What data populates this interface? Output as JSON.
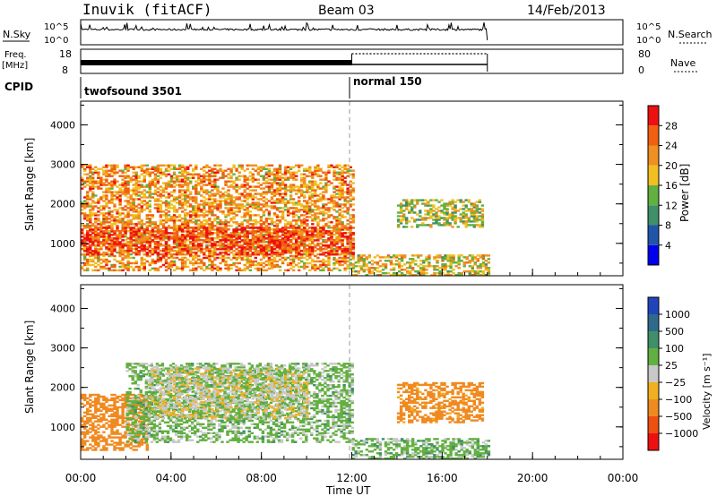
{
  "header": {
    "title": "Inuvik (fitACF)",
    "beam": "Beam 03",
    "date": "14/Feb/2013"
  },
  "strip_labels": {
    "nsky": "N.Sky",
    "freq": "Freq.",
    "freq_unit": "[MHz]",
    "cpid": "CPID",
    "nsearch": "N.Search",
    "nave": "Nave"
  },
  "strip_ticks": {
    "noise_left": [
      "10^5",
      "10^0"
    ],
    "noise_right": [
      "10^5",
      "10^0"
    ],
    "freq_left": [
      "18",
      "8"
    ],
    "nave_right": [
      "80",
      "0"
    ]
  },
  "cpid_segments": [
    {
      "label": "twofsound 3501",
      "start": 0
    },
    {
      "label": "normal 150",
      "start": 12
    }
  ],
  "axes": {
    "x_ticks": [
      "00:00",
      "04:00",
      "08:00",
      "12:00",
      "16:00",
      "20:00",
      "00:00"
    ],
    "xlabel": "Time UT",
    "y_ticks": [
      "1000",
      "2000",
      "3000",
      "4000"
    ],
    "ylabel": "Slant Range [km]"
  },
  "power_scale": {
    "label": "Power [dB]",
    "ticks": [
      "4",
      "8",
      "12",
      "16",
      "20",
      "24",
      "28"
    ],
    "colors": [
      "#0000ee",
      "#2255aa",
      "#3f8f68",
      "#62b040",
      "#f0c020",
      "#f09020",
      "#f06010",
      "#ee1010"
    ]
  },
  "velocity_scale": {
    "label": "Velocity [m s⁻¹]",
    "ticks": [
      "1000",
      "500",
      "100",
      "25",
      "−25",
      "−100",
      "−500",
      "−1000"
    ],
    "colors": [
      "#2244bb",
      "#2f6a8c",
      "#3f8f68",
      "#62b040",
      "#c8c8c8",
      "#f0b020",
      "#f08a20",
      "#ee5010",
      "#ee1010"
    ]
  },
  "chart_data": [
    {
      "type": "heatmap",
      "title": "Power",
      "xlabel": "Time UT",
      "ylabel": "Slant Range [km]",
      "x_range_hours": [
        0,
        24
      ],
      "y_range_km": [
        180,
        4600
      ],
      "color_range_db": [
        0,
        32
      ],
      "echo_regions": [
        {
          "t_start": 0.0,
          "t_end": 12.0,
          "r_min": 300,
          "r_max": 3000,
          "value": 22
        },
        {
          "t_start": 0.0,
          "t_end": 12.0,
          "r_min": 700,
          "r_max": 1400,
          "value": 28
        },
        {
          "t_start": 12.0,
          "t_end": 18.0,
          "r_min": 180,
          "r_max": 700,
          "value": 18
        },
        {
          "t_start": 14.0,
          "t_end": 17.8,
          "r_min": 1400,
          "r_max": 2100,
          "value": 16
        }
      ]
    },
    {
      "type": "heatmap",
      "title": "Velocity",
      "xlabel": "Time UT",
      "ylabel": "Slant Range [km]",
      "x_range_hours": [
        0,
        24
      ],
      "y_range_km": [
        180,
        4600
      ],
      "color_range_ms": [
        -1000,
        1000
      ],
      "echo_regions": [
        {
          "t_start": 0.0,
          "t_end": 3.0,
          "r_min": 400,
          "r_max": 1800,
          "value": -300
        },
        {
          "t_start": 2.0,
          "t_end": 12.0,
          "r_min": 600,
          "r_max": 2600,
          "value": 50
        },
        {
          "t_start": 3.0,
          "t_end": 10.0,
          "r_min": 1200,
          "r_max": 2500,
          "value": 0
        },
        {
          "t_start": 12.0,
          "t_end": 18.0,
          "r_min": 180,
          "r_max": 700,
          "value": 60
        },
        {
          "t_start": 14.0,
          "t_end": 17.8,
          "r_min": 1100,
          "r_max": 2100,
          "value": -150
        }
      ]
    }
  ]
}
